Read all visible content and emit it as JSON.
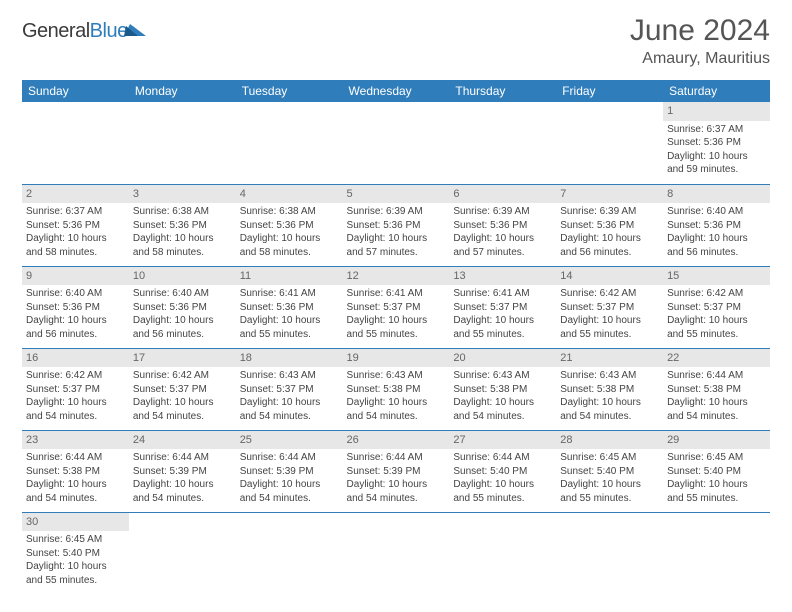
{
  "logo": {
    "text1": "General",
    "text2": "Blue"
  },
  "title": "June 2024",
  "location": "Amaury, Mauritius",
  "colors": {
    "header_bg": "#2f7dbb",
    "header_text": "#ffffff",
    "daynum_bg": "#e7e7e7",
    "border": "#2f7dbb",
    "body_text": "#444444",
    "title_text": "#555555"
  },
  "fonts": {
    "title_size": 30,
    "location_size": 16,
    "header_size": 12,
    "cell_size": 10
  },
  "day_headers": [
    "Sunday",
    "Monday",
    "Tuesday",
    "Wednesday",
    "Thursday",
    "Friday",
    "Saturday"
  ],
  "weeks": [
    [
      {
        "blank": true
      },
      {
        "blank": true
      },
      {
        "blank": true
      },
      {
        "blank": true
      },
      {
        "blank": true
      },
      {
        "blank": true
      },
      {
        "day": "1",
        "sunrise": "Sunrise: 6:37 AM",
        "sunset": "Sunset: 5:36 PM",
        "daylight": "Daylight: 10 hours and 59 minutes."
      }
    ],
    [
      {
        "day": "2",
        "sunrise": "Sunrise: 6:37 AM",
        "sunset": "Sunset: 5:36 PM",
        "daylight": "Daylight: 10 hours and 58 minutes."
      },
      {
        "day": "3",
        "sunrise": "Sunrise: 6:38 AM",
        "sunset": "Sunset: 5:36 PM",
        "daylight": "Daylight: 10 hours and 58 minutes."
      },
      {
        "day": "4",
        "sunrise": "Sunrise: 6:38 AM",
        "sunset": "Sunset: 5:36 PM",
        "daylight": "Daylight: 10 hours and 58 minutes."
      },
      {
        "day": "5",
        "sunrise": "Sunrise: 6:39 AM",
        "sunset": "Sunset: 5:36 PM",
        "daylight": "Daylight: 10 hours and 57 minutes."
      },
      {
        "day": "6",
        "sunrise": "Sunrise: 6:39 AM",
        "sunset": "Sunset: 5:36 PM",
        "daylight": "Daylight: 10 hours and 57 minutes."
      },
      {
        "day": "7",
        "sunrise": "Sunrise: 6:39 AM",
        "sunset": "Sunset: 5:36 PM",
        "daylight": "Daylight: 10 hours and 56 minutes."
      },
      {
        "day": "8",
        "sunrise": "Sunrise: 6:40 AM",
        "sunset": "Sunset: 5:36 PM",
        "daylight": "Daylight: 10 hours and 56 minutes."
      }
    ],
    [
      {
        "day": "9",
        "sunrise": "Sunrise: 6:40 AM",
        "sunset": "Sunset: 5:36 PM",
        "daylight": "Daylight: 10 hours and 56 minutes."
      },
      {
        "day": "10",
        "sunrise": "Sunrise: 6:40 AM",
        "sunset": "Sunset: 5:36 PM",
        "daylight": "Daylight: 10 hours and 56 minutes."
      },
      {
        "day": "11",
        "sunrise": "Sunrise: 6:41 AM",
        "sunset": "Sunset: 5:36 PM",
        "daylight": "Daylight: 10 hours and 55 minutes."
      },
      {
        "day": "12",
        "sunrise": "Sunrise: 6:41 AM",
        "sunset": "Sunset: 5:37 PM",
        "daylight": "Daylight: 10 hours and 55 minutes."
      },
      {
        "day": "13",
        "sunrise": "Sunrise: 6:41 AM",
        "sunset": "Sunset: 5:37 PM",
        "daylight": "Daylight: 10 hours and 55 minutes."
      },
      {
        "day": "14",
        "sunrise": "Sunrise: 6:42 AM",
        "sunset": "Sunset: 5:37 PM",
        "daylight": "Daylight: 10 hours and 55 minutes."
      },
      {
        "day": "15",
        "sunrise": "Sunrise: 6:42 AM",
        "sunset": "Sunset: 5:37 PM",
        "daylight": "Daylight: 10 hours and 55 minutes."
      }
    ],
    [
      {
        "day": "16",
        "sunrise": "Sunrise: 6:42 AM",
        "sunset": "Sunset: 5:37 PM",
        "daylight": "Daylight: 10 hours and 54 minutes."
      },
      {
        "day": "17",
        "sunrise": "Sunrise: 6:42 AM",
        "sunset": "Sunset: 5:37 PM",
        "daylight": "Daylight: 10 hours and 54 minutes."
      },
      {
        "day": "18",
        "sunrise": "Sunrise: 6:43 AM",
        "sunset": "Sunset: 5:37 PM",
        "daylight": "Daylight: 10 hours and 54 minutes."
      },
      {
        "day": "19",
        "sunrise": "Sunrise: 6:43 AM",
        "sunset": "Sunset: 5:38 PM",
        "daylight": "Daylight: 10 hours and 54 minutes."
      },
      {
        "day": "20",
        "sunrise": "Sunrise: 6:43 AM",
        "sunset": "Sunset: 5:38 PM",
        "daylight": "Daylight: 10 hours and 54 minutes."
      },
      {
        "day": "21",
        "sunrise": "Sunrise: 6:43 AM",
        "sunset": "Sunset: 5:38 PM",
        "daylight": "Daylight: 10 hours and 54 minutes."
      },
      {
        "day": "22",
        "sunrise": "Sunrise: 6:44 AM",
        "sunset": "Sunset: 5:38 PM",
        "daylight": "Daylight: 10 hours and 54 minutes."
      }
    ],
    [
      {
        "day": "23",
        "sunrise": "Sunrise: 6:44 AM",
        "sunset": "Sunset: 5:38 PM",
        "daylight": "Daylight: 10 hours and 54 minutes."
      },
      {
        "day": "24",
        "sunrise": "Sunrise: 6:44 AM",
        "sunset": "Sunset: 5:39 PM",
        "daylight": "Daylight: 10 hours and 54 minutes."
      },
      {
        "day": "25",
        "sunrise": "Sunrise: 6:44 AM",
        "sunset": "Sunset: 5:39 PM",
        "daylight": "Daylight: 10 hours and 54 minutes."
      },
      {
        "day": "26",
        "sunrise": "Sunrise: 6:44 AM",
        "sunset": "Sunset: 5:39 PM",
        "daylight": "Daylight: 10 hours and 54 minutes."
      },
      {
        "day": "27",
        "sunrise": "Sunrise: 6:44 AM",
        "sunset": "Sunset: 5:40 PM",
        "daylight": "Daylight: 10 hours and 55 minutes."
      },
      {
        "day": "28",
        "sunrise": "Sunrise: 6:45 AM",
        "sunset": "Sunset: 5:40 PM",
        "daylight": "Daylight: 10 hours and 55 minutes."
      },
      {
        "day": "29",
        "sunrise": "Sunrise: 6:45 AM",
        "sunset": "Sunset: 5:40 PM",
        "daylight": "Daylight: 10 hours and 55 minutes."
      }
    ],
    [
      {
        "day": "30",
        "sunrise": "Sunrise: 6:45 AM",
        "sunset": "Sunset: 5:40 PM",
        "daylight": "Daylight: 10 hours and 55 minutes."
      },
      {
        "blank": true
      },
      {
        "blank": true
      },
      {
        "blank": true
      },
      {
        "blank": true
      },
      {
        "blank": true
      },
      {
        "blank": true
      }
    ]
  ]
}
